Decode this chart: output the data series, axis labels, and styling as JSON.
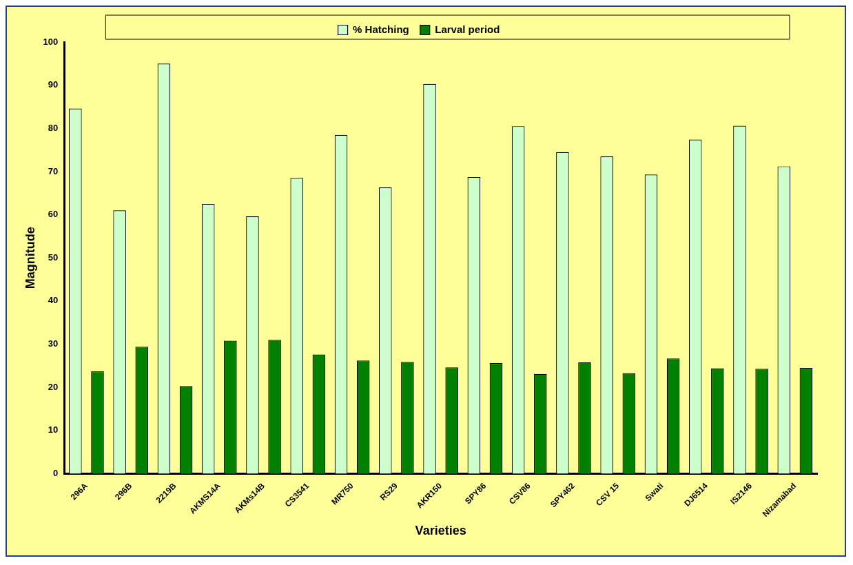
{
  "chart_data": {
    "type": "bar",
    "xlabel": "Varieties",
    "ylabel": "Magnitude",
    "categories": [
      "296A",
      "296B",
      "2219B",
      "AKMS14A",
      "AKMs14B",
      "CS3541",
      "MR750",
      "RS29",
      "AKR150",
      "SPY86",
      "CSV86",
      "SPY462",
      "CSV 15",
      "Swati",
      "DJ6514",
      "IS2146",
      "Nizamabad"
    ],
    "series": [
      {
        "name": "% Hatching",
        "color": "#ccffcc",
        "values": [
          84.6,
          61,
          95,
          62.5,
          59.6,
          68.5,
          78.5,
          66.3,
          90.3,
          68.7,
          80.5,
          74.5,
          73.5,
          69.3,
          77.4,
          80.6,
          71.2
        ]
      },
      {
        "name": "Larval period",
        "color": "#008000",
        "values": [
          23.7,
          29.4,
          20.3,
          30.8,
          31.0,
          27.6,
          26.2,
          25.9,
          24.6,
          25.6,
          23.1,
          25.8,
          23.3,
          26.7,
          24.4,
          24.3,
          24.5
        ]
      }
    ],
    "ylim": [
      0,
      100
    ],
    "yticks": [
      0,
      10,
      20,
      30,
      40,
      50,
      60,
      70,
      80,
      90,
      100
    ],
    "grid": false,
    "legend": "top"
  }
}
